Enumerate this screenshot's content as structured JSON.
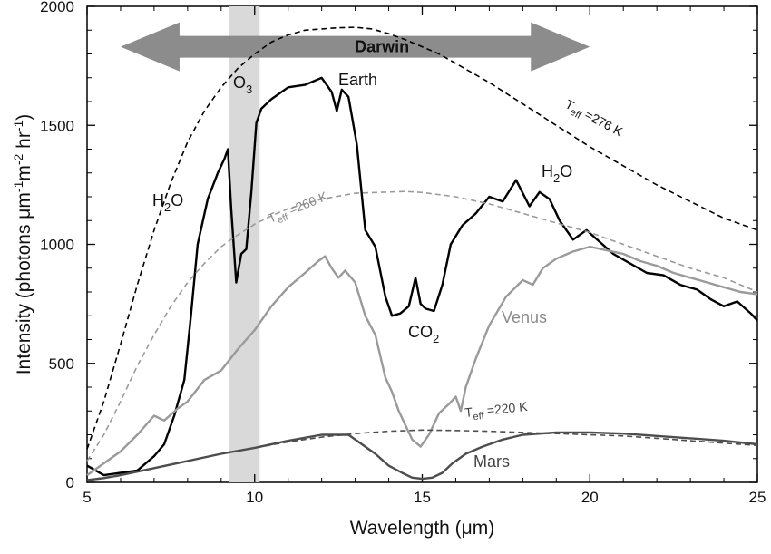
{
  "chart_data": {
    "type": "line",
    "xlabel_main": "Wavelength (",
    "xlabel_unit": "μm",
    "xlabel_end": ")",
    "ylabel": {
      "a": "Intensity (photons ",
      "b": "μm",
      "c": "-1",
      "d": "m",
      "e": "-2",
      "f": " hr",
      "g": "-1",
      "h": ")"
    },
    "xlim": [
      5,
      25
    ],
    "ylim": [
      0,
      2000
    ],
    "xticks": [
      "5",
      "10",
      "15",
      "20",
      "25"
    ],
    "xtick_values": [
      5,
      10,
      15,
      20,
      25
    ],
    "yticks": [
      "0",
      "500",
      "1000",
      "1500",
      "2000"
    ],
    "ytick_values": [
      0,
      500,
      1000,
      1500,
      2000
    ],
    "band": {
      "from": 9.25,
      "to": 10.15,
      "color": "#d9d9d9"
    },
    "arrow": {
      "label": "Darwin",
      "from": 6.0,
      "to": 20.0,
      "y": 1830,
      "color": "#8c8c8c"
    },
    "series": [
      {
        "name": "Earth",
        "color": "#000000",
        "dash": "solid",
        "x": [
          5.0,
          5.5,
          6.0,
          6.5,
          7.0,
          7.3,
          7.6,
          7.9,
          8.1,
          8.3,
          8.6,
          8.9,
          9.1,
          9.2,
          9.3,
          9.45,
          9.6,
          9.75,
          9.9,
          10.05,
          10.2,
          10.5,
          11.0,
          11.5,
          12.0,
          12.3,
          12.45,
          12.6,
          12.8,
          13.05,
          13.3,
          13.6,
          13.9,
          14.1,
          14.35,
          14.6,
          14.8,
          14.95,
          15.1,
          15.35,
          15.6,
          15.85,
          16.2,
          16.6,
          17.0,
          17.4,
          17.8,
          18.2,
          18.5,
          18.8,
          19.1,
          19.5,
          19.9,
          20.3,
          20.7,
          21.2,
          21.7,
          22.2,
          22.7,
          23.2,
          23.6,
          24.0,
          24.4,
          24.8,
          25.0
        ],
        "y": [
          70,
          30,
          40,
          50,
          110,
          160,
          280,
          430,
          700,
          1000,
          1190,
          1300,
          1360,
          1400,
          1150,
          840,
          960,
          980,
          1220,
          1510,
          1570,
          1610,
          1660,
          1670,
          1700,
          1640,
          1560,
          1650,
          1620,
          1420,
          1060,
          990,
          780,
          700,
          710,
          740,
          860,
          750,
          730,
          720,
          830,
          1000,
          1080,
          1130,
          1200,
          1180,
          1270,
          1160,
          1220,
          1190,
          1100,
          1020,
          1060,
          1010,
          960,
          920,
          880,
          870,
          830,
          810,
          770,
          740,
          760,
          710,
          680
        ]
      },
      {
        "name": "Venus",
        "color": "#9a9a9a",
        "dash": "solid",
        "x": [
          5.0,
          5.5,
          6.0,
          6.5,
          7.0,
          7.3,
          7.7,
          8.0,
          8.5,
          9.0,
          9.5,
          10.0,
          10.5,
          11.0,
          11.5,
          11.9,
          12.1,
          12.3,
          12.5,
          12.7,
          13.0,
          13.3,
          13.6,
          13.9,
          14.1,
          14.3,
          14.5,
          14.7,
          14.95,
          15.2,
          15.5,
          15.8,
          16.0,
          16.15,
          16.3,
          16.6,
          17.0,
          17.5,
          18.0,
          18.3,
          18.6,
          19.0,
          19.5,
          20.0,
          20.5,
          21.0,
          21.5,
          22.0,
          22.5,
          23.0,
          23.5,
          24.0,
          24.5,
          25.0
        ],
        "y": [
          30,
          80,
          130,
          200,
          280,
          260,
          310,
          340,
          430,
          470,
          560,
          640,
          740,
          820,
          880,
          930,
          950,
          900,
          860,
          890,
          840,
          700,
          620,
          440,
          380,
          300,
          240,
          180,
          150,
          200,
          290,
          330,
          360,
          300,
          400,
          520,
          660,
          780,
          850,
          830,
          900,
          940,
          970,
          990,
          975,
          960,
          930,
          910,
          880,
          860,
          840,
          820,
          800,
          790
        ]
      },
      {
        "name": "Mars",
        "color": "#4d4d4d",
        "dash": "solid",
        "x": [
          5.0,
          5.5,
          6.0,
          7.0,
          8.0,
          9.0,
          10.0,
          11.0,
          12.0,
          12.8,
          13.2,
          13.6,
          14.0,
          14.4,
          14.7,
          15.0,
          15.3,
          15.6,
          15.9,
          16.3,
          16.8,
          17.4,
          18.0,
          19.0,
          20.0,
          21.0,
          22.0,
          23.0,
          24.0,
          25.0
        ],
        "y": [
          10,
          18,
          30,
          60,
          90,
          120,
          145,
          175,
          200,
          200,
          160,
          120,
          70,
          40,
          20,
          15,
          20,
          40,
          80,
          120,
          150,
          180,
          200,
          210,
          210,
          205,
          195,
          185,
          175,
          160
        ]
      },
      {
        "name": "Teff=276 K",
        "color": "#000000",
        "dash": "dashed",
        "x": [
          5.0,
          5.5,
          6.0,
          6.5,
          7.0,
          7.5,
          8.0,
          8.5,
          9.0,
          9.5,
          10.0,
          10.5,
          11.0,
          11.5,
          12.0,
          12.5,
          13.0,
          13.5,
          14.0,
          14.5,
          15.0,
          15.5,
          16.0,
          17.0,
          18.0,
          19.0,
          20.0,
          21.0,
          22.0,
          23.0,
          24.0,
          25.0
        ],
        "y": [
          140,
          340,
          580,
          830,
          1060,
          1260,
          1430,
          1560,
          1660,
          1740,
          1800,
          1850,
          1880,
          1900,
          1905,
          1910,
          1912,
          1905,
          1885,
          1860,
          1830,
          1800,
          1760,
          1680,
          1590,
          1500,
          1410,
          1330,
          1250,
          1180,
          1110,
          1060
        ]
      },
      {
        "name": "Teff=260 K",
        "color": "#9a9a9a",
        "dash": "dashed",
        "x": [
          5.0,
          5.5,
          6.0,
          6.5,
          7.0,
          7.5,
          8.0,
          8.5,
          9.0,
          9.5,
          10.0,
          10.5,
          11.0,
          12.0,
          13.0,
          14.0,
          14.5,
          15.0,
          16.0,
          17.0,
          18.0,
          19.0,
          20.0,
          21.0,
          22.0,
          23.0,
          24.0,
          25.0
        ],
        "y": [
          90,
          200,
          340,
          490,
          620,
          740,
          840,
          920,
          990,
          1040,
          1085,
          1120,
          1150,
          1190,
          1215,
          1220,
          1222,
          1218,
          1200,
          1170,
          1130,
          1090,
          1050,
          1000,
          950,
          900,
          860,
          800
        ]
      },
      {
        "name": "Teff=220 K",
        "color": "#4d4d4d",
        "dash": "dashed",
        "x": [
          5.0,
          6.0,
          7.0,
          8.0,
          9.0,
          10.0,
          11.0,
          12.0,
          13.0,
          14.0,
          15.0,
          16.0,
          17.0,
          18.0,
          19.0,
          20.0,
          21.0,
          22.0,
          23.0,
          24.0,
          25.0
        ],
        "y": [
          10,
          30,
          60,
          90,
          120,
          145,
          170,
          190,
          205,
          215,
          220,
          218,
          215,
          210,
          205,
          200,
          195,
          185,
          175,
          165,
          155
        ]
      }
    ],
    "annotations": {
      "darwin": "Darwin",
      "o3_main": "O",
      "o3_sub": "3",
      "earth": "Earth",
      "h2o_left_main": "H",
      "h2o_left_sub": "2",
      "h2o_left_end": "O",
      "h2o_right_main": "H",
      "h2o_right_sub": "2",
      "h2o_right_end": "O",
      "co2_main": "CO",
      "co2_sub": "2",
      "venus": "Venus",
      "mars": "Mars",
      "teff276_T": "T",
      "teff276_sub": "eff",
      "teff276_val": " =276 K",
      "teff260_T": "T",
      "teff260_sub": "eff",
      "teff260_val": " =260 K",
      "teff220_T": "T",
      "teff220_sub": "eff",
      "teff220_val": " =220 K"
    },
    "grid": false,
    "legend": "none"
  }
}
